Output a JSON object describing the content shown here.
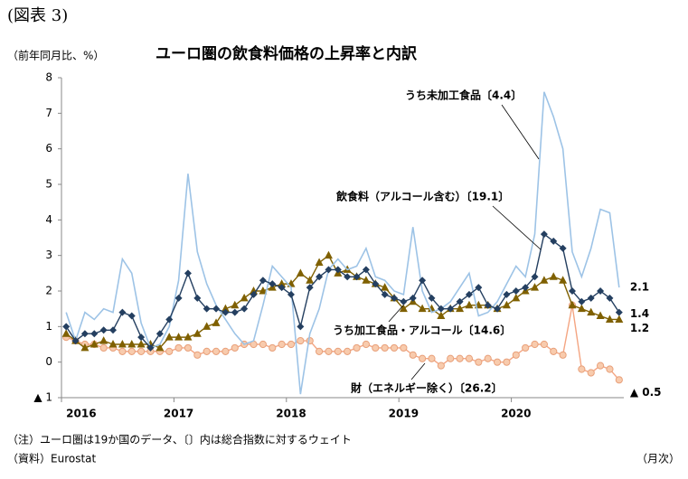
{
  "chart_data": {
    "type": "line",
    "figure_label": "(図表 3)",
    "title": "ユーロ圏の飲食料価格の上昇率と内訳",
    "y_label": "（前年同月比、%）",
    "x_label": "（月次）",
    "note": "（注）ユーロ圏は19か国のデータ、〔〕内は総合指数に対するウェイト",
    "source": "（資料）Eurostat",
    "categories": [
      "2016",
      null,
      null,
      null,
      null,
      null,
      null,
      null,
      null,
      null,
      null,
      null,
      "2017",
      null,
      null,
      null,
      null,
      null,
      null,
      null,
      null,
      null,
      null,
      null,
      "2018",
      null,
      null,
      null,
      null,
      null,
      null,
      null,
      null,
      null,
      null,
      null,
      "2019",
      null,
      null,
      null,
      null,
      null,
      null,
      null,
      null,
      null,
      null,
      null,
      "2020",
      null,
      null,
      null,
      null,
      null,
      null,
      null,
      null,
      null,
      null,
      null
    ],
    "ylim": [
      -1,
      8
    ],
    "yticks": [
      {
        "value": -1,
        "label": "▲ 1"
      },
      0,
      1,
      2,
      3,
      4,
      5,
      6,
      7,
      8
    ],
    "grid": false,
    "series": [
      {
        "name": "うち未加工食品〔4.4〕",
        "color": "#9dc3e6",
        "marker": "none",
        "end_label": "2.1",
        "values": [
          1.4,
          0.6,
          1.4,
          1.2,
          1.5,
          1.4,
          2.9,
          2.5,
          1.1,
          0.4,
          0.5,
          1.0,
          2.3,
          5.3,
          3.1,
          2.2,
          1.6,
          1.2,
          0.8,
          0.5,
          0.6,
          1.6,
          2.7,
          2.4,
          2.1,
          -0.9,
          0.8,
          1.5,
          2.6,
          2.9,
          2.6,
          2.7,
          3.2,
          2.4,
          2.3,
          2.0,
          1.9,
          3.8,
          2.0,
          1.4,
          1.5,
          1.7,
          2.1,
          2.5,
          1.3,
          1.4,
          1.7,
          2.2,
          2.7,
          2.4,
          3.6,
          7.6,
          6.9,
          6.0,
          3.1,
          2.4,
          3.2,
          4.3,
          4.2,
          2.1
        ]
      },
      {
        "name": "飲食料（アルコール含む）〔19.1〕",
        "color": "#243f60",
        "marker": "diamond",
        "end_label": "1.4",
        "values": [
          1.0,
          0.6,
          0.8,
          0.8,
          0.9,
          0.9,
          1.4,
          1.3,
          0.7,
          0.4,
          0.8,
          1.2,
          1.8,
          2.5,
          1.8,
          1.5,
          1.5,
          1.4,
          1.4,
          1.5,
          1.9,
          2.3,
          2.2,
          2.1,
          1.9,
          1.0,
          2.1,
          2.4,
          2.6,
          2.6,
          2.4,
          2.4,
          2.6,
          2.2,
          1.9,
          1.8,
          1.7,
          1.8,
          2.3,
          1.8,
          1.5,
          1.5,
          1.7,
          1.9,
          2.1,
          1.6,
          1.5,
          1.9,
          2.0,
          2.1,
          2.4,
          3.6,
          3.4,
          3.2,
          2.0,
          1.7,
          1.8,
          2.0,
          1.8,
          1.4
        ]
      },
      {
        "name": "うち加工食品・アルコール〔14.6〕",
        "color": "#7f6000",
        "marker": "triangle",
        "end_label": "1.2",
        "values": [
          0.8,
          0.6,
          0.4,
          0.5,
          0.6,
          0.5,
          0.5,
          0.5,
          0.5,
          0.5,
          0.4,
          0.7,
          0.7,
          0.7,
          0.8,
          1.0,
          1.1,
          1.5,
          1.6,
          1.8,
          2.0,
          2.0,
          2.1,
          2.2,
          2.2,
          2.5,
          2.3,
          2.8,
          3.0,
          2.5,
          2.6,
          2.4,
          2.3,
          2.2,
          2.1,
          1.8,
          1.5,
          1.7,
          1.5,
          1.5,
          1.3,
          1.5,
          1.5,
          1.6,
          1.6,
          1.6,
          1.5,
          1.6,
          1.8,
          2.0,
          2.1,
          2.3,
          2.4,
          2.3,
          1.6,
          1.5,
          1.4,
          1.3,
          1.2,
          1.2
        ]
      },
      {
        "name": "財（エネルギー除く）〔26.2〕",
        "color": "#f4a582",
        "marker": "circle",
        "end_label": "▲ 0.5",
        "values": [
          0.7,
          0.6,
          0.5,
          0.5,
          0.4,
          0.4,
          0.3,
          0.3,
          0.3,
          0.3,
          0.3,
          0.3,
          0.4,
          0.4,
          0.2,
          0.3,
          0.3,
          0.3,
          0.4,
          0.5,
          0.5,
          0.5,
          0.4,
          0.5,
          0.5,
          0.6,
          0.6,
          0.3,
          0.3,
          0.3,
          0.3,
          0.4,
          0.5,
          0.4,
          0.4,
          0.4,
          0.4,
          0.2,
          0.1,
          0.1,
          -0.1,
          0.1,
          0.1,
          0.1,
          0.0,
          0.1,
          0.0,
          0.0,
          0.2,
          0.4,
          0.5,
          0.5,
          0.3,
          0.2,
          1.6,
          -0.2,
          -0.3,
          -0.1,
          -0.2,
          -0.5
        ]
      }
    ]
  }
}
